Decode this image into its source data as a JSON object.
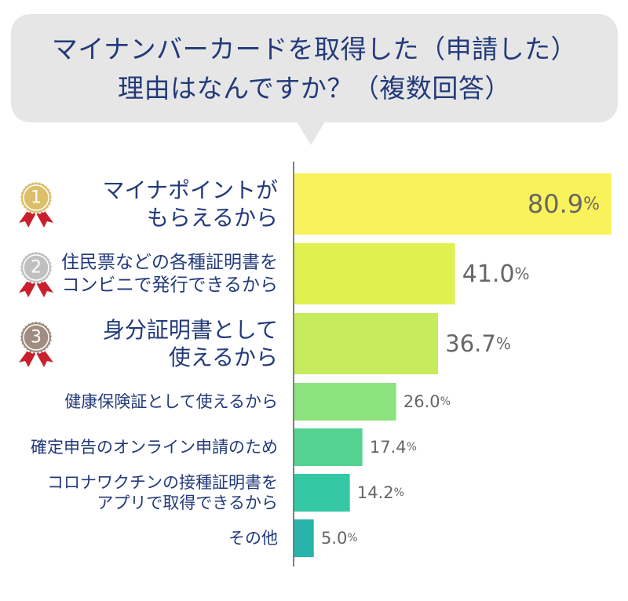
{
  "title": {
    "line1": "マイナンバーカードを取得した（申請した）",
    "line2": "理由はなんですか？（複数回答）"
  },
  "chart_data": {
    "type": "bar",
    "orientation": "horizontal",
    "unit": "%",
    "xlim": [
      0,
      80.9
    ],
    "rank_badges": [
      "1",
      "2",
      "3"
    ],
    "categories": [
      [
        "マイナポイントが",
        "もらえるから"
      ],
      [
        "住民票などの各種証明書を",
        "コンビニで発行できるから"
      ],
      [
        "身分証明書として",
        "使えるから"
      ],
      [
        "健康保険証として使えるから"
      ],
      [
        "確定申告のオンライン申請のため"
      ],
      [
        "コロナワクチンの接種証明書を",
        "アプリで取得できるから"
      ],
      [
        "その他"
      ]
    ],
    "values": [
      80.9,
      41.0,
      36.7,
      26.0,
      17.4,
      14.2,
      5.0
    ],
    "value_labels": [
      "80.9",
      "41.0",
      "36.7",
      "26.0",
      "17.4",
      "14.2",
      "5.0"
    ],
    "colors": [
      "#faf25a",
      "#e0f04e",
      "#c6ec5e",
      "#8ce27c",
      "#54d490",
      "#34c8a4",
      "#28b4aa"
    ],
    "medal_colors": [
      "#dcbf6a",
      "#c0c0c0",
      "#a08c80"
    ],
    "ribbon_color": "#c8202c"
  }
}
